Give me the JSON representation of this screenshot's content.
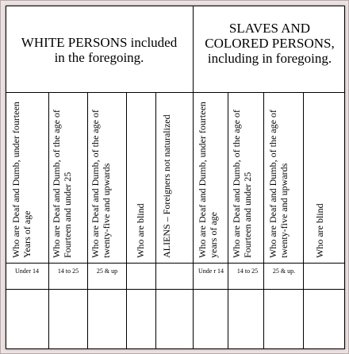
{
  "groups": {
    "white": "WHITE PERSONS included in the foregoing.",
    "slaves": "SLAVES AND COLORED PERSONS, including in foregoing."
  },
  "columns": [
    {
      "label": "Who are Deaf and Dumb, under fourteen Years of age",
      "age": "Under 14"
    },
    {
      "label": "Who are Deaf and Dumb, of the age of Fourteen and under 25",
      "age": "14 to 25"
    },
    {
      "label": "Who are Deaf and Dumb, of the age of twenty-five and upwards",
      "age": "25 & up"
    },
    {
      "label": "Who are blind",
      "age": ""
    },
    {
      "label": "ALIENS – Foreigners not naturalized",
      "age": ""
    },
    {
      "label": "Who are Deaf and Dumb, under fourteen years of age",
      "age": "Unde r 14"
    },
    {
      "label": "Who are Deaf and Dumb, of the age of Fourteen and under 25",
      "age": "14 to 25"
    },
    {
      "label": "Who are Deaf and Dumb, of the age of twenty-five and upwards",
      "age": "25 & up."
    },
    {
      "label": "Who are blind",
      "age": ""
    }
  ]
}
